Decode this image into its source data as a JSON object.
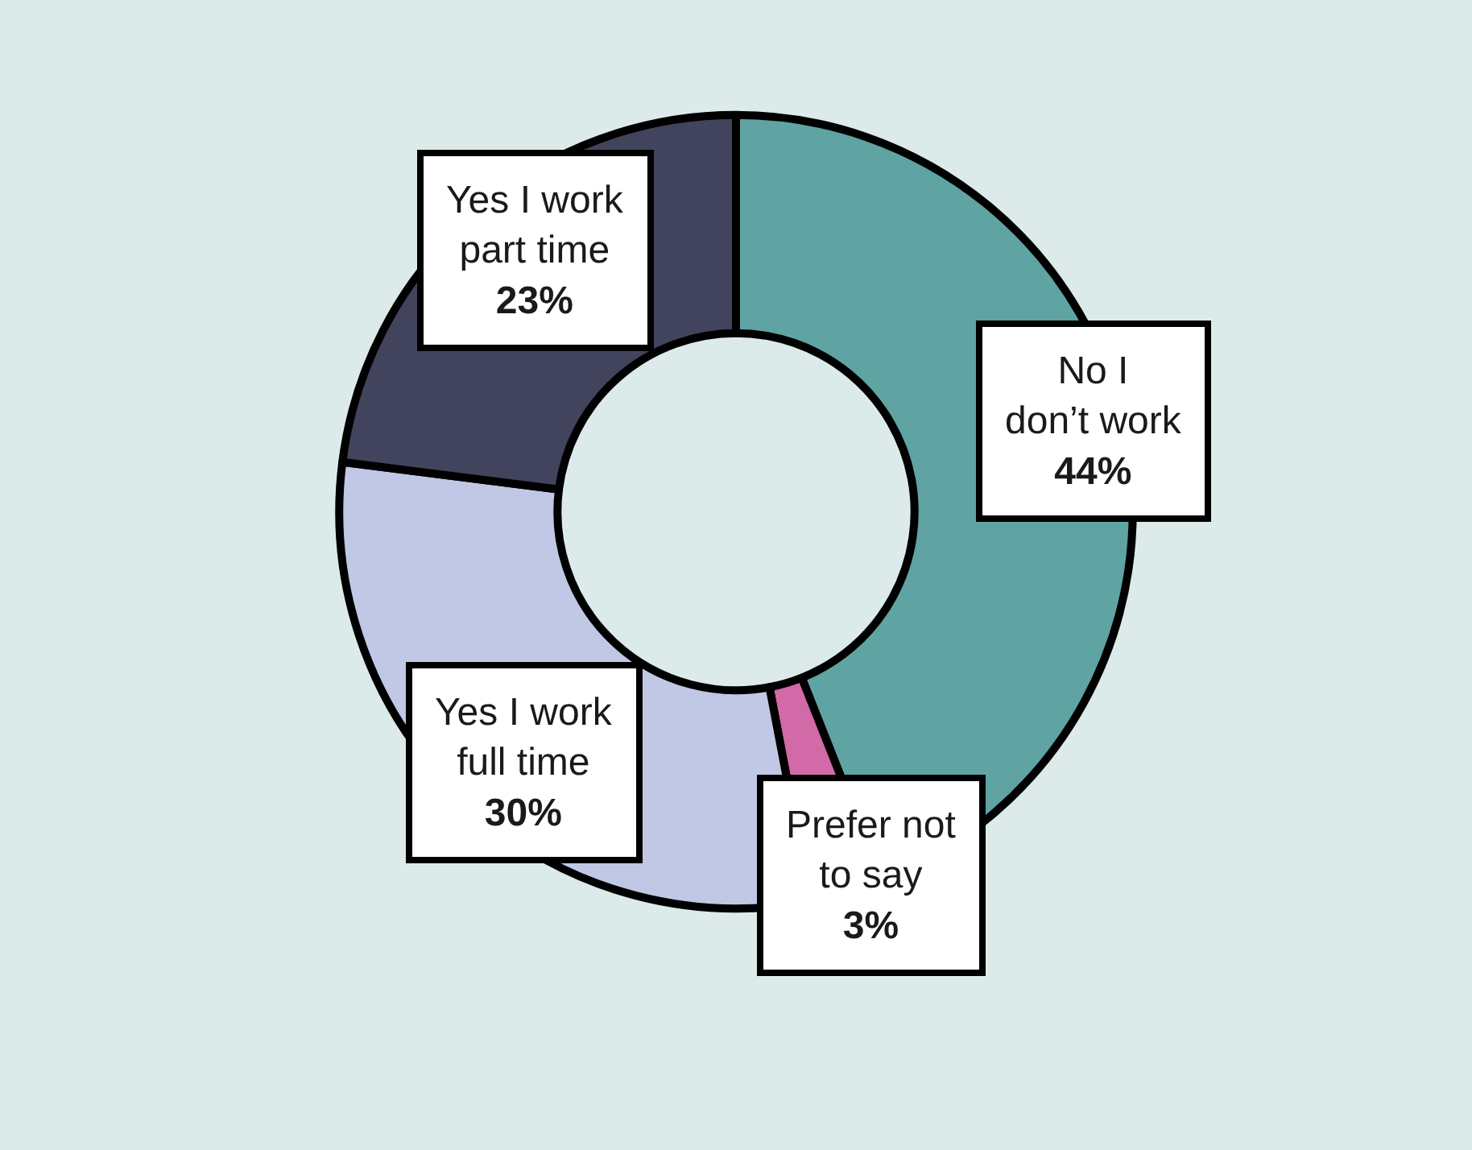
{
  "chart_data": {
    "type": "donut",
    "categories": [
      "No I\ndon’t work",
      "Prefer not\nto say",
      "Yes I work\nfull time",
      "Yes I work\npart time"
    ],
    "values": [
      44,
      3,
      30,
      23
    ],
    "value_labels": [
      "44%",
      "3%",
      "30%",
      "23%"
    ],
    "colors": [
      "#5fa3a3",
      "#d16aa6",
      "#c1c8e6",
      "#42435c"
    ],
    "legend": false
  }
}
